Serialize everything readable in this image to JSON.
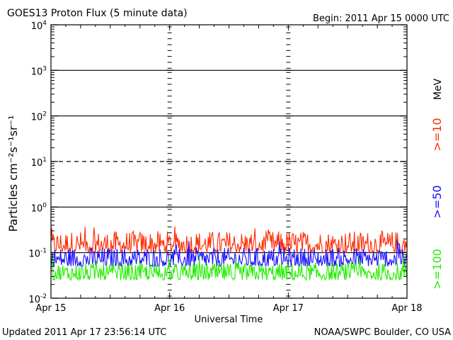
{
  "chart_data": {
    "type": "line",
    "title": "GOES13 Proton Flux (5 minute data)",
    "begin_label": "Begin: 2011 Apr 15 0000 UTC",
    "xlabel": "Universal Time",
    "ylabel": "Particles cm⁻²s⁻¹sr⁻¹",
    "x_tick_labels": [
      "Apr 15",
      "Apr 16",
      "Apr 17",
      "Apr 18"
    ],
    "xlim_days": [
      0,
      3
    ],
    "y_scale": "log",
    "ylim": [
      0.01,
      10000
    ],
    "y_tick_labels": [
      {
        "base": "10",
        "exp": "-2",
        "value": 0.01
      },
      {
        "base": "10",
        "exp": "-1",
        "value": 0.1
      },
      {
        "base": "10",
        "exp": "0",
        "value": 1
      },
      {
        "base": "10",
        "exp": "1",
        "value": 10
      },
      {
        "base": "10",
        "exp": "2",
        "value": 100
      },
      {
        "base": "10",
        "exp": "3",
        "value": 1000
      },
      {
        "base": "10",
        "exp": "4",
        "value": 10000
      }
    ],
    "reference_lines": [
      {
        "value": 0.1,
        "style": "solid"
      },
      {
        "value": 1,
        "style": "solid"
      },
      {
        "value": 10,
        "style": "dashed"
      },
      {
        "value": 100,
        "style": "solid"
      },
      {
        "value": 1000,
        "style": "solid"
      }
    ],
    "grid": false,
    "legend_unit": "MeV",
    "series": [
      {
        "name": ">=10",
        "color": "#ff2a00",
        "typical_range": [
          0.1,
          0.3
        ],
        "peak": 0.42
      },
      {
        "name": ">=50",
        "color": "#1a10ff",
        "typical_range": [
          0.05,
          0.13
        ],
        "peak": 0.2
      },
      {
        "name": ">=100",
        "color": "#22ee00",
        "typical_range": [
          0.025,
          0.06
        ],
        "peak": 0.08
      }
    ]
  },
  "footer": {
    "updated": "Updated 2011 Apr 17 23:56:14 UTC",
    "source": "NOAA/SWPC Boulder, CO USA"
  }
}
